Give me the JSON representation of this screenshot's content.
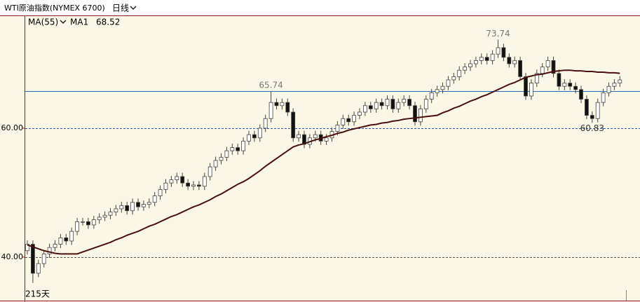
{
  "chart_data": {
    "type": "candlestick",
    "title": "WTI原油指数(NYMEX 6700)",
    "period": "日线",
    "indicator": "MA(55)",
    "ma_name": "MA1",
    "period_label": "215天",
    "ylim": [
      33.04,
      77.5
    ],
    "yticks": [
      {
        "value": 60,
        "label": "60.00"
      },
      {
        "value": 40,
        "label": "40.00"
      }
    ],
    "hlines": [
      {
        "value": 65.74,
        "color": "#2a6fb8",
        "dashed": false
      },
      {
        "value": 60,
        "color": "#2a4fb8",
        "dashed": true
      },
      {
        "value": 40,
        "color": "#555555",
        "dashed": true
      }
    ],
    "up_color": "#ffffff",
    "down_color": "#111111",
    "outline_color": "#444444",
    "ma_color": "#4a1010",
    "annotations": [
      65.74,
      73.74,
      60.83
    ],
    "open": [
      41,
      42,
      37.5,
      39,
      40.5,
      41.5,
      42,
      43,
      42.5,
      44,
      45.5,
      45.5,
      45,
      45.8,
      46.2,
      46.5,
      47,
      47.5,
      48,
      47.2,
      48.5,
      47.8,
      48.2,
      48.5,
      49.5,
      50.5,
      51.5,
      52,
      52.5,
      51.5,
      51,
      51.2,
      51,
      52.5,
      54,
      55,
      55.5,
      56.5,
      57,
      56.5,
      58,
      59,
      58.5,
      60,
      61.5,
      64,
      63.5,
      64,
      62.5,
      58.5,
      59,
      57.5,
      58.5,
      59,
      58,
      58.5,
      59.5,
      60.5,
      61.5,
      61,
      62,
      62.5,
      63.5,
      63,
      64,
      63.5,
      64.5,
      63,
      64,
      64.5,
      63.5,
      61,
      63,
      64.5,
      65.5,
      66,
      66.5,
      67.5,
      68,
      69,
      69.5,
      70,
      70.5,
      71,
      70.5,
      71.5,
      72.5,
      71,
      70,
      70.5,
      68,
      65,
      67,
      68.5,
      69.5,
      70.5,
      68.5,
      66.5,
      67,
      66.5,
      66,
      64.5,
      62,
      61.5,
      64,
      65.5,
      66.5,
      67
    ],
    "high": [
      42.6,
      42.6,
      39.6,
      41.1,
      42.1,
      42.6,
      43.6,
      43.6,
      44.6,
      46.1,
      46.1,
      46.1,
      46.4,
      46.8,
      47.1,
      47.6,
      48.1,
      48.6,
      48.6,
      49.1,
      49.1,
      48.8,
      49.1,
      50.1,
      51.1,
      52.1,
      52.6,
      53.1,
      53.1,
      52.1,
      51.8,
      51.8,
      53.1,
      54.6,
      55.6,
      56.1,
      57.1,
      57.6,
      57.6,
      58.6,
      59.6,
      59.6,
      60.6,
      62.1,
      65.74,
      64.6,
      64.6,
      64.6,
      63.1,
      59.6,
      59.6,
      59.1,
      59.6,
      59.6,
      59.1,
      60.1,
      61.1,
      62.1,
      62.1,
      62.6,
      63.1,
      64.1,
      64.1,
      64.6,
      64.6,
      65.1,
      65.1,
      64.6,
      65.1,
      65.1,
      64.1,
      63.6,
      65.1,
      66.1,
      66.6,
      67.1,
      68.1,
      68.6,
      69.6,
      70.1,
      70.6,
      71.1,
      71.6,
      71.6,
      72.1,
      73.74,
      73.1,
      71.6,
      71.1,
      71.1,
      68.6,
      67.6,
      69.1,
      70.1,
      71.1,
      71.1,
      69.1,
      67.6,
      67.6,
      67.1,
      66.6,
      65.1,
      62.6,
      64.6,
      66.1,
      67.1,
      67.6,
      68.1
    ],
    "low": [
      40.4,
      36,
      36.9,
      38.4,
      39.9,
      40.9,
      41.4,
      41.9,
      41.9,
      43.4,
      44.9,
      44.4,
      44.4,
      45.2,
      45.6,
      45.9,
      46.4,
      46.9,
      46.6,
      46.6,
      47.2,
      47.2,
      47.6,
      47.9,
      48.9,
      49.9,
      50.9,
      51.4,
      50.9,
      50.4,
      50.4,
      50.4,
      50.4,
      51.9,
      53.4,
      54.4,
      54.9,
      55.9,
      55.9,
      55.9,
      57.4,
      57.9,
      57.9,
      59.4,
      60.9,
      62.9,
      62.9,
      61.9,
      57.9,
      57.9,
      56.9,
      56.9,
      57.9,
      57.4,
      57.4,
      57.9,
      58.9,
      59.9,
      60.4,
      60.4,
      61.4,
      61.9,
      62.4,
      62.4,
      62.9,
      62.9,
      62.4,
      62.4,
      63.4,
      62.9,
      60.4,
      60.4,
      62.4,
      63.9,
      64.9,
      65.4,
      65.9,
      66.9,
      67.4,
      68.4,
      68.9,
      69.4,
      69.9,
      69.9,
      69.9,
      70.9,
      70.4,
      69.4,
      69.4,
      67.4,
      64.4,
      64.4,
      66.4,
      67.9,
      68.9,
      67.9,
      65.9,
      65.9,
      65.9,
      65.4,
      63.9,
      61.4,
      60.83,
      60.9,
      63.4,
      64.9,
      65.9,
      66.4
    ],
    "close": [
      42,
      37.5,
      39,
      40.5,
      41.5,
      42,
      43,
      42.5,
      44,
      45.5,
      45.5,
      45,
      45.8,
      46.2,
      46.5,
      47,
      47.5,
      48,
      47.2,
      48.5,
      47.8,
      48.2,
      48.5,
      49.5,
      50.5,
      51.5,
      52,
      52.5,
      51.5,
      51,
      51.2,
      51,
      52.5,
      54,
      55,
      55.5,
      56.5,
      57,
      56.5,
      58,
      59,
      58.5,
      60,
      61.5,
      64,
      63.5,
      64,
      62.5,
      58.5,
      59,
      57.5,
      58.5,
      59,
      58,
      58.5,
      59.5,
      60.5,
      61.5,
      61,
      62,
      62.5,
      63.5,
      63,
      64,
      63.5,
      64.5,
      63,
      64,
      64.5,
      63.5,
      61,
      63,
      64.5,
      65.5,
      66,
      66.5,
      67.5,
      68,
      69,
      69.5,
      70,
      70.5,
      71,
      70.5,
      71.5,
      72.5,
      71,
      70,
      70.5,
      68,
      65,
      67,
      68.5,
      69.5,
      70.5,
      68.5,
      66.5,
      67,
      66.5,
      66,
      64.5,
      62,
      61.5,
      64,
      65.5,
      66.5,
      67,
      67.5
    ],
    "ma": [
      41.9,
      41.6,
      41.3,
      41,
      40.8,
      40.6,
      40.5,
      40.5,
      40.5,
      40.5,
      40.8,
      41.1,
      41.4,
      41.7,
      42,
      42.3,
      42.7,
      43,
      43.4,
      43.7,
      44,
      44.4,
      44.8,
      45.1,
      45.5,
      45.9,
      46.3,
      46.6,
      47,
      47.4,
      47.8,
      48.1,
      48.5,
      48.9,
      49.4,
      49.8,
      50.3,
      50.8,
      51.3,
      51.7,
      52.2,
      52.8,
      53.4,
      54.1,
      54.7,
      55.3,
      55.9,
      56.5,
      57.1,
      57.4,
      57.6,
      57.9,
      58.2,
      58.4,
      58.7,
      58.9,
      59.2,
      59.4,
      59.7,
      59.9,
      60.1,
      60.3,
      60.5,
      60.6,
      60.8,
      60.9,
      61.1,
      61.2,
      61.4,
      61.5,
      61.6,
      61.7,
      61.8,
      61.9,
      62,
      62.4,
      62.7,
      63.1,
      63.4,
      63.8,
      64.2,
      64.5,
      64.9,
      65.2,
      65.6,
      66,
      66.4,
      66.8,
      67.1,
      67.5,
      67.9,
      68.1,
      68.3,
      68.4,
      68.6,
      68.8,
      68.9,
      69,
      69,
      68.9,
      68.9,
      68.8,
      68.8,
      68.7,
      68.7,
      68.6,
      68.6,
      68.52
    ]
  }
}
